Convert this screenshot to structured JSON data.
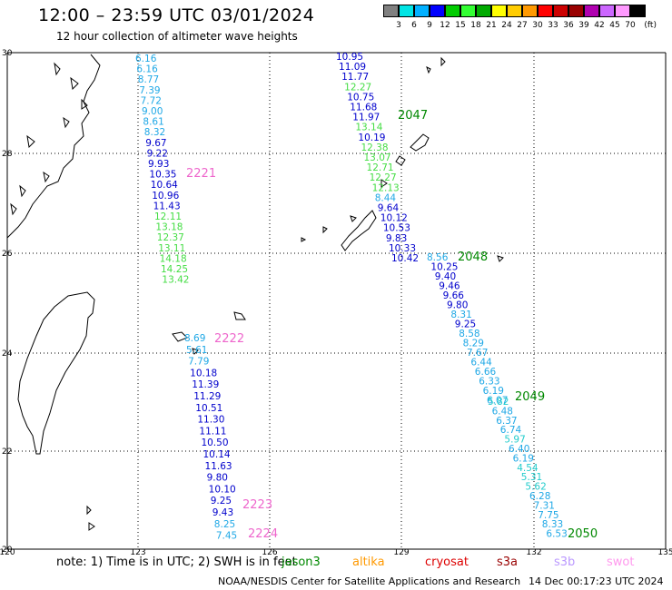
{
  "header": {
    "title": "12:00 – 23:59 UTC 03/01/2024",
    "subtitle": "12 hour collection of altimeter wave heights"
  },
  "colorbar": {
    "unit": "(ft)",
    "colors": [
      "#808080",
      "#00e5e5",
      "#00b0ff",
      "#0000ff",
      "#00cc00",
      "#33ff33",
      "#00aa00",
      "#ffff00",
      "#ffcc00",
      "#ff9900",
      "#ff0000",
      "#cc0000",
      "#990000",
      "#b000b0",
      "#cc66ff",
      "#ff99ff",
      "#000000"
    ],
    "labels": [
      "3",
      "6",
      "9",
      "12",
      "15",
      "18",
      "21",
      "24",
      "27",
      "30",
      "33",
      "36",
      "39",
      "42",
      "45",
      "70"
    ]
  },
  "map": {
    "lon_ticks": [
      "120",
      "123",
      "126",
      "129",
      "132",
      "135"
    ],
    "lat_ticks": [
      "30",
      "28",
      "26",
      "24",
      "22",
      "20"
    ]
  },
  "tracks": [
    {
      "pass_label": "2221",
      "pass_color": "#ee66cc",
      "points": [
        {
          "v": "6.16",
          "c": "#1fa8e6"
        },
        {
          "v": "6.16",
          "c": "#1fa8e6"
        },
        {
          "v": "8.77",
          "c": "#1fa8e6"
        },
        {
          "v": "7.39",
          "c": "#1fa8e6"
        },
        {
          "v": "7.72",
          "c": "#1fa8e6"
        },
        {
          "v": "9.00",
          "c": "#1fa8e6"
        },
        {
          "v": "8.61",
          "c": "#1fa8e6"
        },
        {
          "v": "8.32",
          "c": "#1fa8e6"
        },
        {
          "v": "9.67",
          "c": "#0000cc"
        },
        {
          "v": "9.22",
          "c": "#0000cc"
        },
        {
          "v": "9.93",
          "c": "#0000cc"
        },
        {
          "v": "10.35",
          "c": "#0000cc"
        },
        {
          "v": "10.64",
          "c": "#0000cc"
        },
        {
          "v": "10.96",
          "c": "#0000cc"
        },
        {
          "v": "11.43",
          "c": "#0000cc"
        },
        {
          "v": "12.11",
          "c": "#44dd44"
        },
        {
          "v": "13.18",
          "c": "#44dd44"
        },
        {
          "v": "12.37",
          "c": "#44dd44"
        },
        {
          "v": "13.11",
          "c": "#44dd44"
        },
        {
          "v": "14.18",
          "c": "#44dd44"
        },
        {
          "v": "14.25",
          "c": "#44dd44"
        },
        {
          "v": "13.42",
          "c": "#44dd44"
        }
      ]
    },
    {
      "pass_label": "2222",
      "pass_color": "#ee66cc",
      "points": [
        {
          "v": "8.69",
          "c": "#1fa8e6"
        },
        {
          "v": "5.61",
          "c": "#1fa8e6"
        },
        {
          "v": "7.79",
          "c": "#1fa8e6"
        },
        {
          "v": "10.18",
          "c": "#0000cc"
        },
        {
          "v": "11.39",
          "c": "#0000cc"
        },
        {
          "v": "11.29",
          "c": "#0000cc"
        },
        {
          "v": "10.51",
          "c": "#0000cc"
        },
        {
          "v": "11.30",
          "c": "#0000cc"
        },
        {
          "v": "11.11",
          "c": "#0000cc"
        },
        {
          "v": "10.50",
          "c": "#0000cc"
        },
        {
          "v": "10.14",
          "c": "#0000cc"
        },
        {
          "v": "11.63",
          "c": "#0000cc"
        },
        {
          "v": "9.80",
          "c": "#0000cc"
        },
        {
          "v": "10.10",
          "c": "#0000cc"
        },
        {
          "v": "9.25",
          "c": "#0000cc"
        },
        {
          "v": "9.43",
          "c": "#0000cc"
        },
        {
          "v": "8.25",
          "c": "#1fa8e6"
        },
        {
          "v": "7.45",
          "c": "#1fa8e6"
        }
      ],
      "extra_labels": [
        "2223",
        "2224"
      ]
    },
    {
      "pass_label": "2047",
      "pass_color": "#008800",
      "points": [
        {
          "v": "10.95",
          "c": "#0000cc"
        },
        {
          "v": "11.09",
          "c": "#0000cc"
        },
        {
          "v": "11.77",
          "c": "#0000cc"
        },
        {
          "v": "12.27",
          "c": "#44dd44"
        },
        {
          "v": "10.75",
          "c": "#0000cc"
        },
        {
          "v": "11.68",
          "c": "#0000cc"
        },
        {
          "v": "11.97",
          "c": "#0000cc"
        },
        {
          "v": "13.14",
          "c": "#44dd44"
        },
        {
          "v": "10.19",
          "c": "#0000cc"
        },
        {
          "v": "12.38",
          "c": "#44dd44"
        },
        {
          "v": "13.07",
          "c": "#44dd44"
        },
        {
          "v": "12.71",
          "c": "#44dd44"
        },
        {
          "v": "12.27",
          "c": "#44dd44"
        },
        {
          "v": "12.13",
          "c": "#44dd44"
        },
        {
          "v": "8.44",
          "c": "#1fa8e6"
        },
        {
          "v": "9.64",
          "c": "#0000cc"
        },
        {
          "v": "10.12",
          "c": "#0000cc"
        },
        {
          "v": "10.53",
          "c": "#0000cc"
        },
        {
          "v": "9.83",
          "c": "#0000cc"
        },
        {
          "v": "10.33",
          "c": "#0000cc"
        },
        {
          "v": "10.42",
          "c": "#0000cc"
        }
      ]
    },
    {
      "pass_label": "2048",
      "pass_color": "#008800",
      "points": [
        {
          "v": "8.56",
          "c": "#1fa8e6"
        },
        {
          "v": "10.25",
          "c": "#0000cc"
        },
        {
          "v": "9.40",
          "c": "#0000cc"
        },
        {
          "v": "9.46",
          "c": "#0000cc"
        },
        {
          "v": "9.66",
          "c": "#0000cc"
        },
        {
          "v": "9.80",
          "c": "#0000cc"
        },
        {
          "v": "8.31",
          "c": "#1fa8e6"
        },
        {
          "v": "9.25",
          "c": "#0000cc"
        },
        {
          "v": "8.58",
          "c": "#1fa8e6"
        },
        {
          "v": "8.29",
          "c": "#1fa8e6"
        },
        {
          "v": "7.67",
          "c": "#1fa8e6"
        },
        {
          "v": "6.44",
          "c": "#1fa8e6"
        },
        {
          "v": "6.66",
          "c": "#1fa8e6"
        },
        {
          "v": "6.33",
          "c": "#1fa8e6"
        },
        {
          "v": "6.19",
          "c": "#1fa8e6"
        },
        {
          "v": "6.07",
          "c": "#1fa8e6"
        }
      ]
    },
    {
      "pass_label": "2049",
      "pass_color": "#008800",
      "points": [
        {
          "v": "5.82",
          "c": "#22cccc"
        },
        {
          "v": "6.48",
          "c": "#1fa8e6"
        },
        {
          "v": "6.37",
          "c": "#1fa8e6"
        },
        {
          "v": "6.74",
          "c": "#1fa8e6"
        },
        {
          "v": "5.97",
          "c": "#22cccc"
        },
        {
          "v": "6.40",
          "c": "#1fa8e6"
        },
        {
          "v": "6.19",
          "c": "#1fa8e6"
        },
        {
          "v": "4.54",
          "c": "#22cccc"
        },
        {
          "v": "5.31",
          "c": "#22cccc"
        },
        {
          "v": "5.62",
          "c": "#22cccc"
        },
        {
          "v": "6.28",
          "c": "#1fa8e6"
        },
        {
          "v": "7.31",
          "c": "#1fa8e6"
        },
        {
          "v": "7.75",
          "c": "#1fa8e6"
        },
        {
          "v": "8.33",
          "c": "#1fa8e6"
        },
        {
          "v": "6.53",
          "c": "#1fa8e6"
        }
      ]
    },
    {
      "pass_label": "2050",
      "pass_color": "#008800",
      "points": []
    }
  ],
  "note": "note:  1) Time is in UTC;  2) SWH is in feet",
  "satellites": [
    {
      "name": "jason3",
      "color": "#008800"
    },
    {
      "name": "altika",
      "color": "#ff9900"
    },
    {
      "name": "cryosat",
      "color": "#dd0000"
    },
    {
      "name": "s3a",
      "color": "#990000"
    },
    {
      "name": "s3b",
      "color": "#bb99ff"
    },
    {
      "name": "swot",
      "color": "#ff99ee"
    }
  ],
  "footer": {
    "credit": "NOAA/NESDIS Center for Satellite Applications and Research",
    "timestamp": "14 Dec 00:17:23 UTC 2024"
  }
}
